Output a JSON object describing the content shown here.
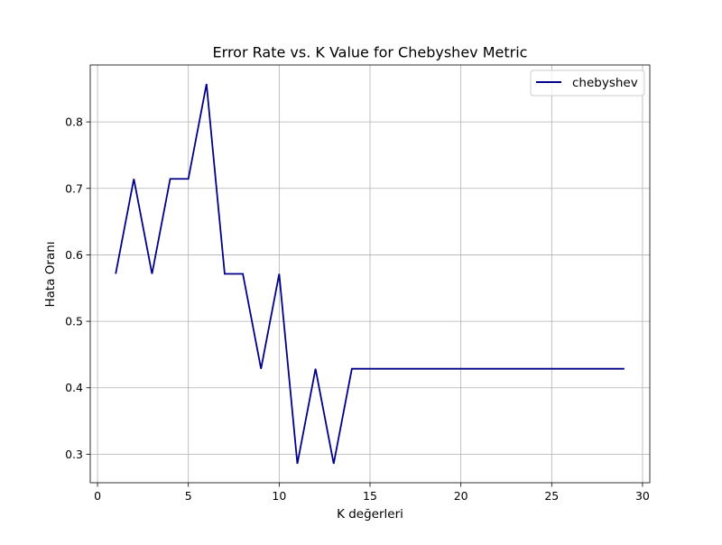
{
  "chart_data": {
    "type": "line",
    "title": "Error Rate vs. K Value for Chebyshev Metric",
    "xlabel": "K değerleri",
    "ylabel": "Hata Oranı",
    "xlim": [
      -0.4,
      30.4
    ],
    "ylim": [
      0.2571,
      0.8857
    ],
    "xticks": [
      0,
      5,
      10,
      15,
      20,
      25,
      30
    ],
    "yticks": [
      0.3,
      0.4,
      0.5,
      0.6,
      0.7,
      0.8
    ],
    "xtick_labels": [
      "0",
      "5",
      "10",
      "15",
      "20",
      "25",
      "30"
    ],
    "ytick_labels": [
      "0.3",
      "0.4",
      "0.5",
      "0.6",
      "0.7",
      "0.8"
    ],
    "grid": true,
    "legend_position": "top-right",
    "series": [
      {
        "name": "chebyshev",
        "color": "#00008b",
        "x": [
          1,
          2,
          3,
          4,
          5,
          6,
          7,
          8,
          9,
          10,
          11,
          12,
          13,
          14,
          15,
          16,
          17,
          18,
          19,
          20,
          21,
          22,
          23,
          24,
          25,
          26,
          27,
          28,
          29
        ],
        "y": [
          0.5714,
          0.7143,
          0.5714,
          0.7143,
          0.7143,
          0.8571,
          0.5714,
          0.5714,
          0.4286,
          0.5714,
          0.2857,
          0.4286,
          0.2857,
          0.4286,
          0.4286,
          0.4286,
          0.4286,
          0.4286,
          0.4286,
          0.4286,
          0.4286,
          0.4286,
          0.4286,
          0.4286,
          0.4286,
          0.4286,
          0.4286,
          0.4286,
          0.4286
        ]
      }
    ]
  }
}
